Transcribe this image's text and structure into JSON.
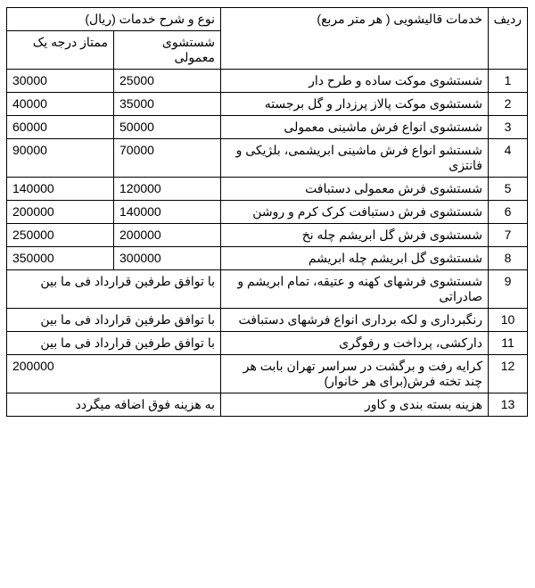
{
  "headers": {
    "row": "ردیف",
    "service": "خدمات قالیشویی ( هر متر مربع)",
    "price_group": "نوع و شرح خدمات (ریال)",
    "normal": "شستشوی معمولی",
    "premium": "ممتاز درجه یک"
  },
  "rows": [
    {
      "n": "1",
      "service": "شستشوی موکت ساده و طرح دار",
      "normal": "25000",
      "premium": "30000"
    },
    {
      "n": "2",
      "service": "شستشوی موکت پالاز پرزدار و گل برجسته",
      "normal": "35000",
      "premium": "40000"
    },
    {
      "n": "3",
      "service": "شستشوی انواع فرش ماشینی معمولی",
      "normal": "50000",
      "premium": "60000"
    },
    {
      "n": "4",
      "service": "شستشو انواع فرش ماشینی ابریشمی، بلژیکی و فانتزی",
      "normal": "70000",
      "premium": "90000"
    },
    {
      "n": "5",
      "service": "شستشوی فرش معمولی دستبافت",
      "normal": "120000",
      "premium": "140000"
    },
    {
      "n": "6",
      "service": "شستشوی فرش دستبافت کرک کرم و روشن",
      "normal": "140000",
      "premium": "200000"
    },
    {
      "n": "7",
      "service": "شستشوی فرش گل ابریشم چله نخ",
      "normal": "200000",
      "premium": "250000"
    },
    {
      "n": "8",
      "service": "شستشوی گل ابریشم چله ابریشم",
      "normal": "300000",
      "premium": "350000"
    },
    {
      "n": "9",
      "service": "شستشوی فرشهای کهنه و عتیقه، تمام ابریشم و صادراتی",
      "merged": "با توافق طرفین قرارداد فی ما بین"
    },
    {
      "n": "10",
      "service": "رنگبرداری و لکه برداری انواع فرشهای دستبافت",
      "merged": "با توافق طرفین قرارداد فی ما بین"
    },
    {
      "n": "11",
      "service": "دارکشی، پرداخت و رفوگری",
      "merged": "با توافق طرفین قرارداد فی ما بین"
    },
    {
      "n": "12",
      "service": "کرایه رفت و برگشت در سراسر تهران بابت هر چند تخته فرش(برای هر خانوار)",
      "merged": "200000"
    },
    {
      "n": "13",
      "service": "هزینه بسته بندی و کاور",
      "merged": "به هزینه فوق اضافه میگردد"
    }
  ],
  "colors": {
    "border": "#000000",
    "background": "#ffffff",
    "text": "#000000"
  }
}
